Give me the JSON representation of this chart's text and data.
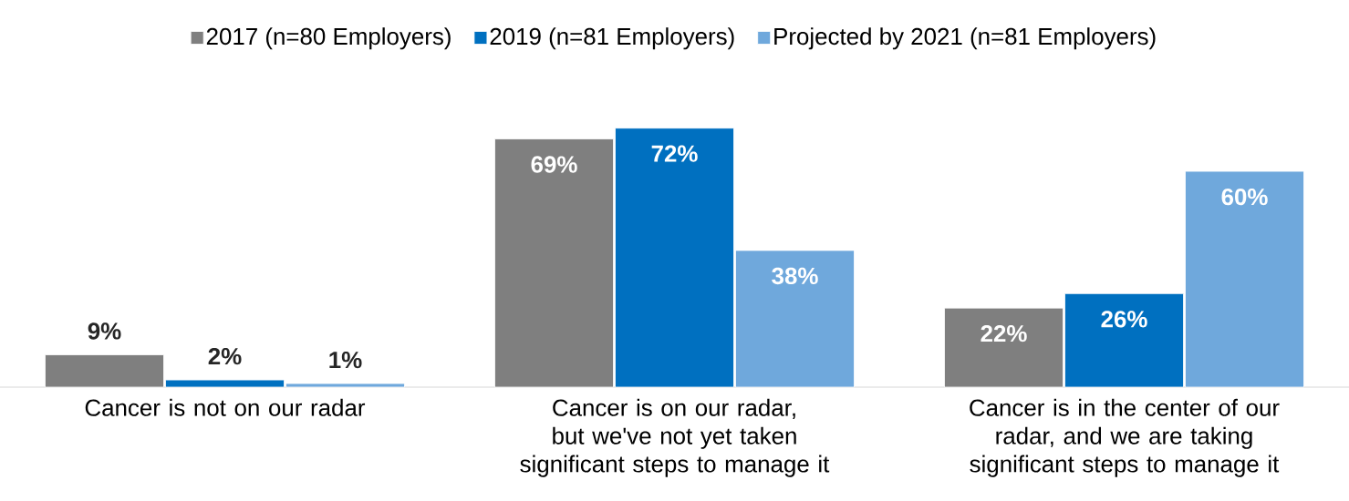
{
  "chart_data": {
    "type": "bar",
    "categories": [
      "Cancer is not on our radar",
      "Cancer is on our radar, but we've not yet taken significant steps to manage it",
      "Cancer is in the center of our radar, and we are taking significant steps to manage it"
    ],
    "series": [
      {
        "name": "2017 (n=80 Employers)",
        "color": "#7f7f7f",
        "values": [
          9,
          69,
          22
        ],
        "value_labels": [
          "9%",
          "69%",
          "22%"
        ]
      },
      {
        "name": "2019 (n=81 Employers)",
        "color": "#0070c0",
        "values": [
          2,
          72,
          26
        ],
        "value_labels": [
          "2%",
          "72%",
          "26%"
        ]
      },
      {
        "name": "Projected by 2021 (n=81 Employers)",
        "color": "#6fa8dc",
        "values": [
          1,
          38,
          60
        ],
        "value_labels": [
          "1%",
          "38%",
          "60%"
        ]
      }
    ],
    "legend": "top"
  }
}
